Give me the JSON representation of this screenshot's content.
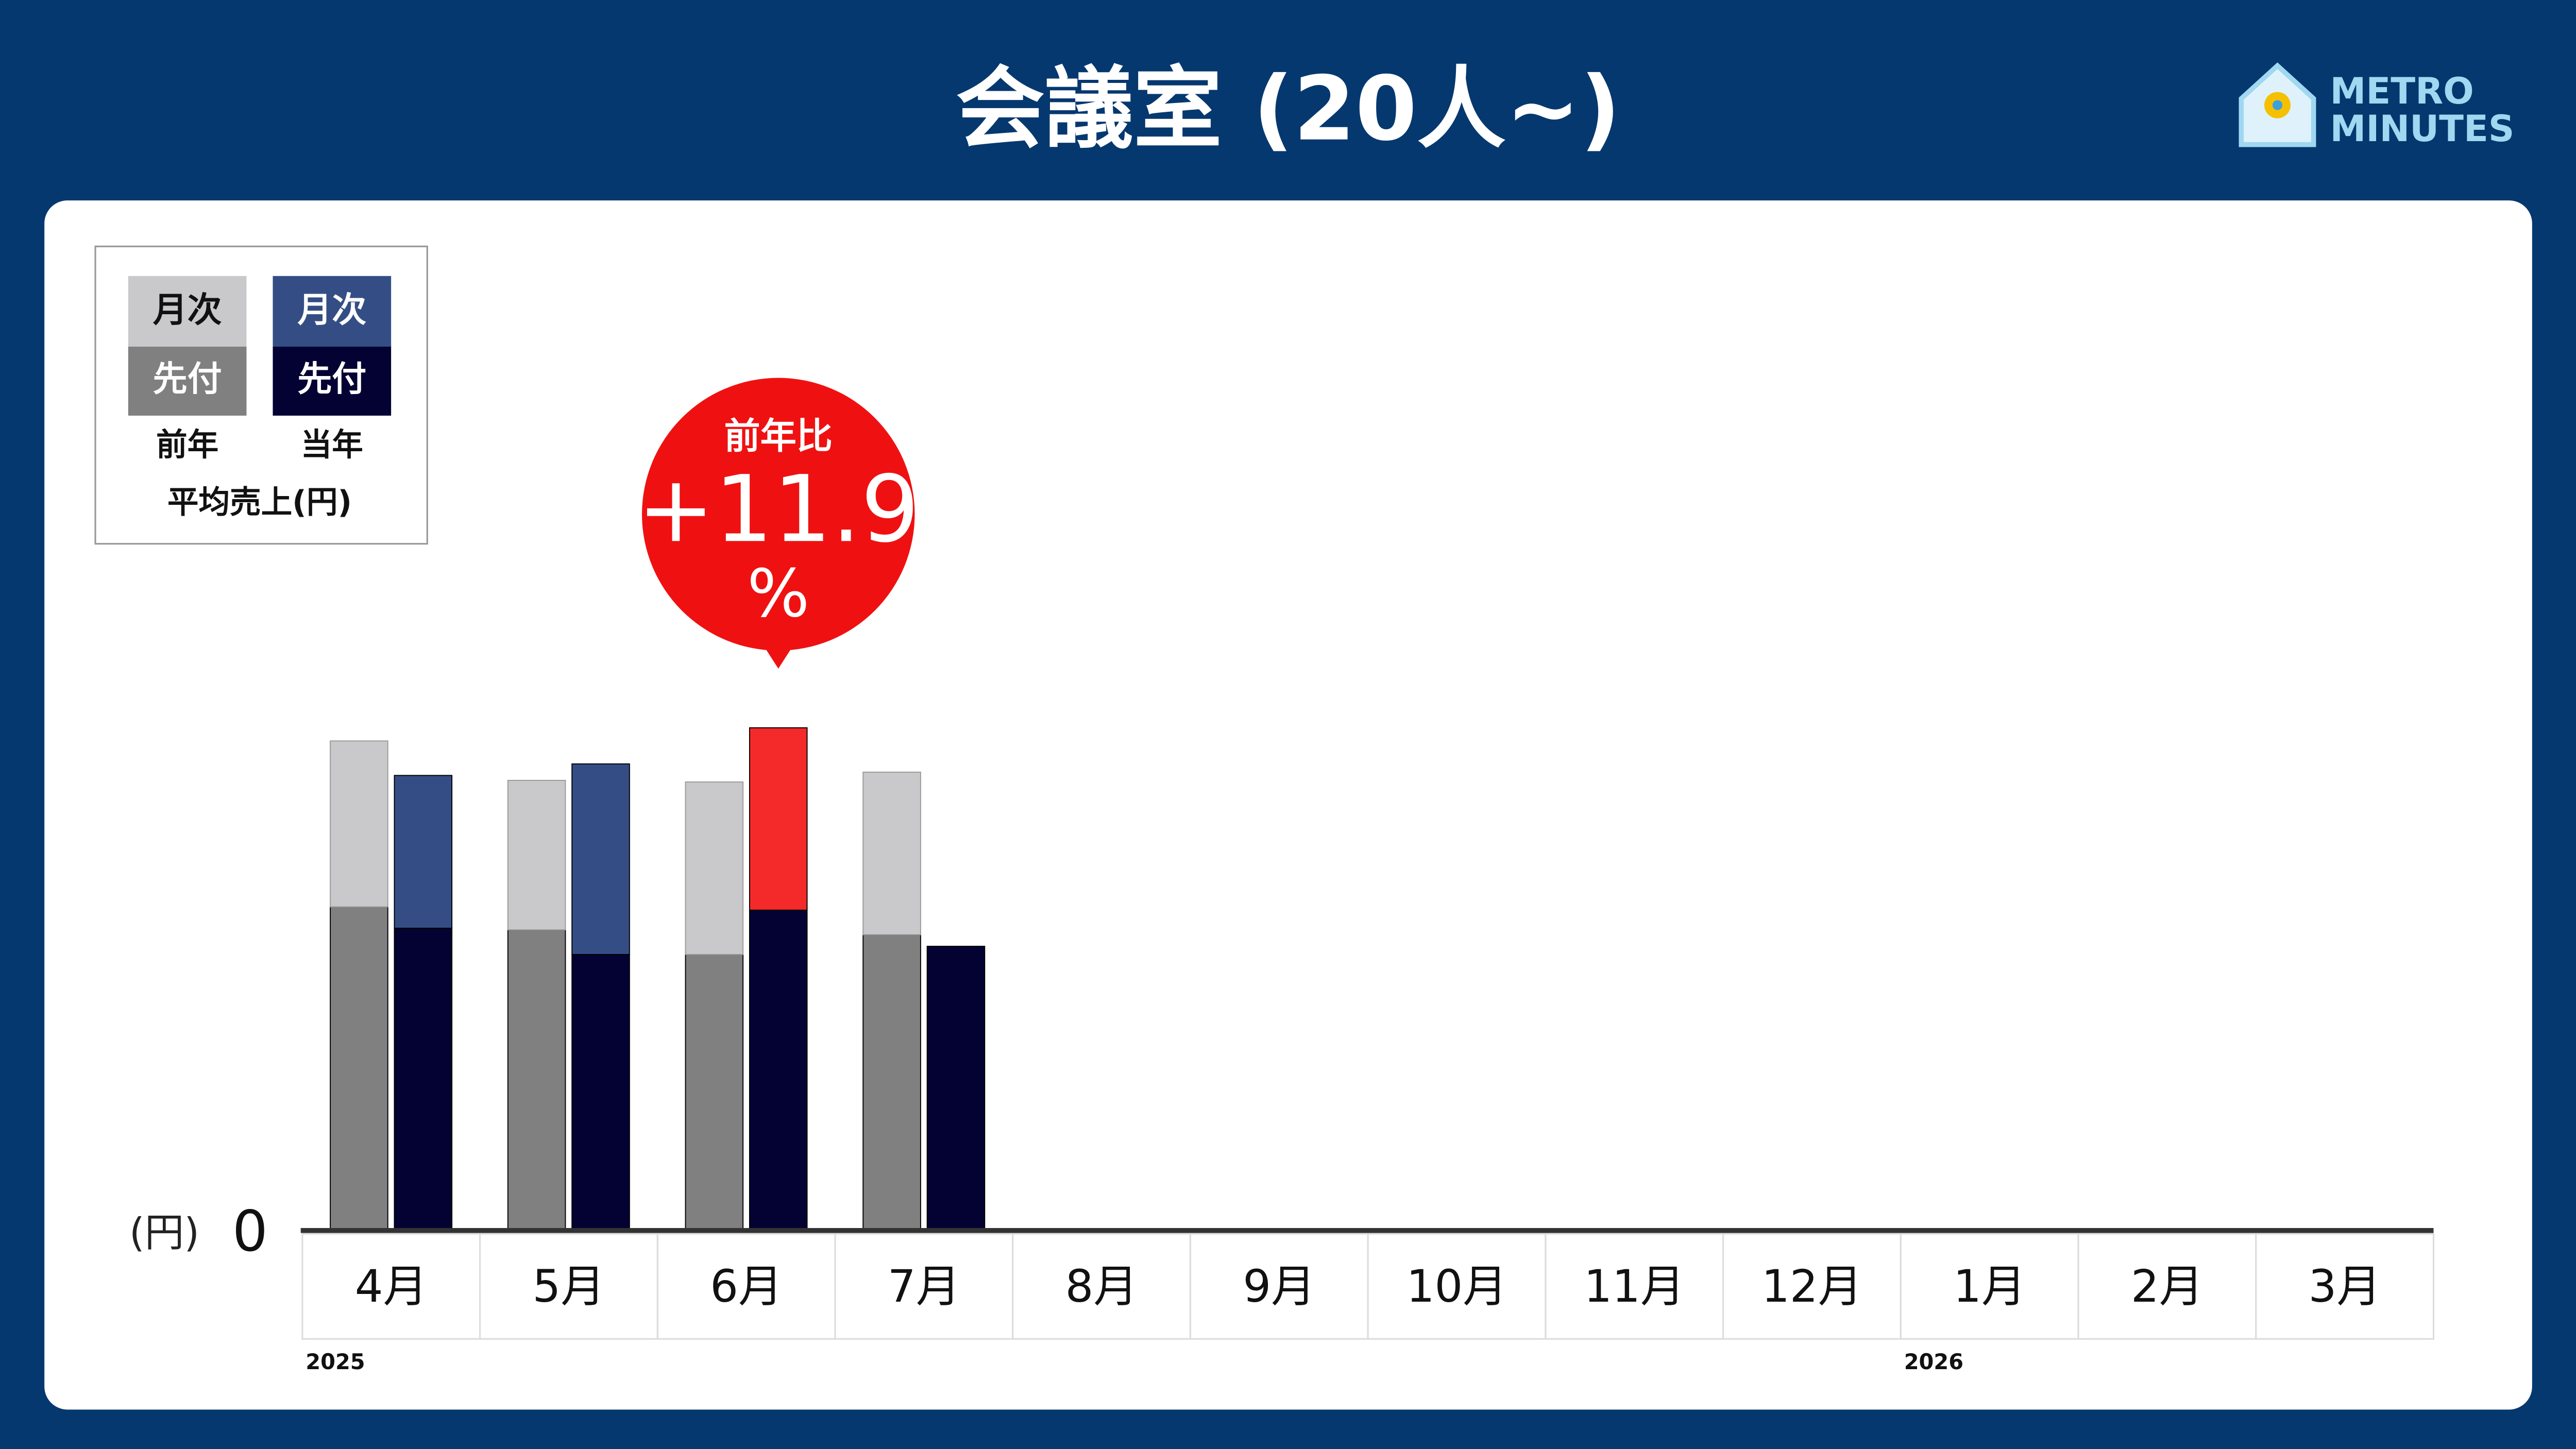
{
  "header": {
    "title": "会議室 (20人~)",
    "logo": [
      "METRO",
      "MINUTES"
    ]
  },
  "chart_data": {
    "type": "stacked_bar",
    "categories": [
      "4月",
      "5月",
      "6月",
      "7月",
      "8月",
      "9月",
      "10月",
      "11月",
      "12月",
      "1月",
      "2月",
      "3月"
    ],
    "years": [
      {
        "index": 0,
        "label": "2025"
      },
      {
        "index": 9,
        "label": "2026"
      }
    ],
    "groups": [
      "前年",
      "当年"
    ],
    "legend_caption": "平均売上(円)",
    "y_unit": "(円)",
    "ylim": [
      0,
      320
    ],
    "yticks": [
      0
    ],
    "series": [
      {
        "name": "先付",
        "group": 0,
        "color": "#808080",
        "values": [
          197,
          183,
          168,
          180,
          null,
          null,
          null,
          null,
          null,
          null,
          null,
          null
        ]
      },
      {
        "name": "月次",
        "group": 0,
        "color": "#c9c8ca",
        "values": [
          101,
          91,
          105,
          99,
          null,
          null,
          null,
          null,
          null,
          null,
          null,
          null
        ]
      },
      {
        "name": "先付",
        "group": 1,
        "color": "#030233",
        "values": [
          184,
          168,
          195,
          173,
          null,
          null,
          null,
          null,
          null,
          null,
          null,
          null
        ]
      },
      {
        "name": "月次",
        "group": 1,
        "color": "#344e85",
        "values": [
          93,
          116,
          111,
          null,
          null,
          null,
          null,
          null,
          null,
          null,
          null,
          null
        ]
      }
    ],
    "highlight": {
      "category_index": 2,
      "series_index": 3,
      "color": "#f42a2a",
      "label": "前年比",
      "value": 11.9,
      "value_label": "+11.9",
      "unit": "%"
    }
  }
}
